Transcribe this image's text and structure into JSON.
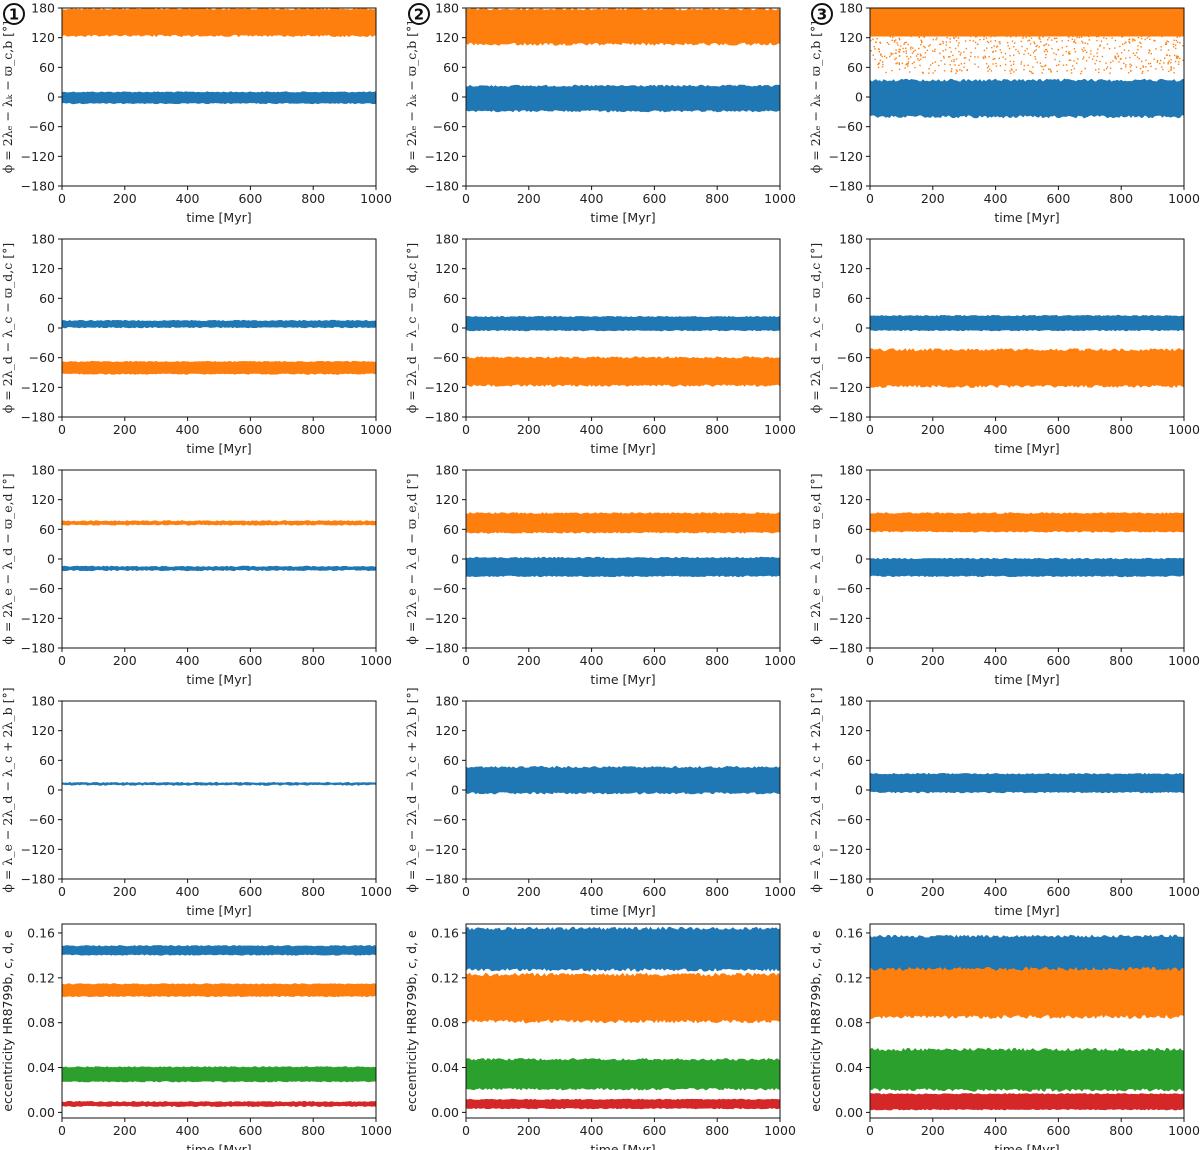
{
  "figure": {
    "column_labels": [
      "1",
      "2",
      "3"
    ],
    "xlabel": "time [Myr]"
  },
  "colors": {
    "blue": "#1f77b4",
    "orange": "#ff7f0e",
    "green": "#2ca02c",
    "red": "#d62728"
  },
  "row_ylabels": [
    "ϕ = 2λₑ − λₖ − ϖ_c,b [°]",
    "ϕ = 2λ_d − λ_c − ϖ_d,c [°]",
    "ϕ = 2λ_e − λ_d − ϖ_e,d [°]",
    "ϕ = λ_e − 2λ_d − λ_c + 2λ_b [°]",
    "eccentricity HR8799b, c, d, e"
  ],
  "chart_data": [
    {
      "row": 0,
      "col": 0,
      "type": "area",
      "xlim": [
        0,
        1000
      ],
      "ylim": [
        -180,
        180
      ],
      "xticks": [
        "0",
        "200",
        "400",
        "600",
        "800",
        "1000"
      ],
      "yticks": [
        "−180",
        "−120",
        "−60",
        "0",
        "60",
        "120",
        "180"
      ],
      "series": [
        {
          "name": "blue",
          "color": "blue",
          "low": -14,
          "high": 11,
          "scatter": 0
        },
        {
          "name": "orange",
          "color": "orange",
          "low": 122,
          "high": 180,
          "scatter": 0
        }
      ]
    },
    {
      "row": 0,
      "col": 1,
      "type": "area",
      "xlim": [
        0,
        1000
      ],
      "ylim": [
        -180,
        180
      ],
      "xticks": [
        "0",
        "200",
        "400",
        "600",
        "800",
        "1000"
      ],
      "yticks": [
        "−180",
        "−120",
        "−60",
        "0",
        "60",
        "120",
        "180"
      ],
      "series": [
        {
          "name": "blue",
          "color": "blue",
          "low": -30,
          "high": 24,
          "scatter": 0
        },
        {
          "name": "orange",
          "color": "orange",
          "low": 105,
          "high": 180,
          "scatter": 0
        }
      ]
    },
    {
      "row": 0,
      "col": 2,
      "type": "area",
      "xlim": [
        0,
        1000
      ],
      "ylim": [
        -180,
        180
      ],
      "xticks": [
        "0",
        "200",
        "400",
        "600",
        "800",
        "1000"
      ],
      "yticks": [
        "−180",
        "−120",
        "−60",
        "0",
        "60",
        "120",
        "180"
      ],
      "series": [
        {
          "name": "orange",
          "color": "orange",
          "low": 75,
          "high": 180,
          "scatter": 1
        },
        {
          "name": "blue",
          "color": "blue",
          "low": -42,
          "high": 36,
          "scatter": 0
        }
      ]
    },
    {
      "row": 1,
      "col": 0,
      "type": "area",
      "xlim": [
        0,
        1000
      ],
      "ylim": [
        -180,
        180
      ],
      "xticks": [
        "0",
        "200",
        "400",
        "600",
        "800",
        "1000"
      ],
      "yticks": [
        "−180",
        "−120",
        "−60",
        "0",
        "60",
        "120",
        "180"
      ],
      "series": [
        {
          "name": "blue",
          "color": "blue",
          "low": 0,
          "high": 16,
          "scatter": 0
        },
        {
          "name": "orange",
          "color": "orange",
          "low": -94,
          "high": -67,
          "scatter": 0
        }
      ]
    },
    {
      "row": 1,
      "col": 1,
      "type": "area",
      "xlim": [
        0,
        1000
      ],
      "ylim": [
        -180,
        180
      ],
      "xticks": [
        "0",
        "200",
        "400",
        "600",
        "800",
        "1000"
      ],
      "yticks": [
        "−180",
        "−120",
        "−60",
        "0",
        "60",
        "120",
        "180"
      ],
      "series": [
        {
          "name": "blue",
          "color": "blue",
          "low": -6,
          "high": 24,
          "scatter": 0
        },
        {
          "name": "orange",
          "color": "orange",
          "low": -118,
          "high": -58,
          "scatter": 0
        }
      ]
    },
    {
      "row": 1,
      "col": 2,
      "type": "area",
      "xlim": [
        0,
        1000
      ],
      "ylim": [
        -180,
        180
      ],
      "xticks": [
        "0",
        "200",
        "400",
        "600",
        "800",
        "1000"
      ],
      "yticks": [
        "−180",
        "−120",
        "−60",
        "0",
        "60",
        "120",
        "180"
      ],
      "series": [
        {
          "name": "blue",
          "color": "blue",
          "low": -6,
          "high": 26,
          "scatter": 0
        },
        {
          "name": "orange",
          "color": "orange",
          "low": -120,
          "high": -42,
          "scatter": 0
        }
      ]
    },
    {
      "row": 2,
      "col": 0,
      "type": "area",
      "xlim": [
        0,
        1000
      ],
      "ylim": [
        -180,
        180
      ],
      "xticks": [
        "0",
        "200",
        "400",
        "600",
        "800",
        "1000"
      ],
      "yticks": [
        "−180",
        "−120",
        "−60",
        "0",
        "60",
        "120",
        "180"
      ],
      "series": [
        {
          "name": "orange",
          "color": "orange",
          "low": 68,
          "high": 78,
          "scatter": 0
        },
        {
          "name": "blue",
          "color": "blue",
          "low": -24,
          "high": -14,
          "scatter": 0
        }
      ]
    },
    {
      "row": 2,
      "col": 1,
      "type": "area",
      "xlim": [
        0,
        1000
      ],
      "ylim": [
        -180,
        180
      ],
      "xticks": [
        "0",
        "200",
        "400",
        "600",
        "800",
        "1000"
      ],
      "yticks": [
        "−180",
        "−120",
        "−60",
        "0",
        "60",
        "120",
        "180"
      ],
      "series": [
        {
          "name": "orange",
          "color": "orange",
          "low": 52,
          "high": 94,
          "scatter": 0
        },
        {
          "name": "blue",
          "color": "blue",
          "low": -36,
          "high": 4,
          "scatter": 0
        }
      ]
    },
    {
      "row": 2,
      "col": 2,
      "type": "area",
      "xlim": [
        0,
        1000
      ],
      "ylim": [
        -180,
        180
      ],
      "xticks": [
        "0",
        "200",
        "400",
        "600",
        "800",
        "1000"
      ],
      "yticks": [
        "−180",
        "−120",
        "−60",
        "0",
        "60",
        "120",
        "180"
      ],
      "series": [
        {
          "name": "orange",
          "color": "orange",
          "low": 54,
          "high": 94,
          "scatter": 0
        },
        {
          "name": "blue",
          "color": "blue",
          "low": -36,
          "high": 2,
          "scatter": 0
        }
      ]
    },
    {
      "row": 3,
      "col": 0,
      "type": "area",
      "xlim": [
        0,
        1000
      ],
      "ylim": [
        -180,
        180
      ],
      "xticks": [
        "0",
        "200",
        "400",
        "600",
        "800",
        "1000"
      ],
      "yticks": [
        "−180",
        "−120",
        "−60",
        "0",
        "60",
        "120",
        "180"
      ],
      "series": [
        {
          "name": "blue",
          "color": "blue",
          "low": 9,
          "high": 16,
          "scatter": 0
        }
      ]
    },
    {
      "row": 3,
      "col": 1,
      "type": "area",
      "xlim": [
        0,
        1000
      ],
      "ylim": [
        -180,
        180
      ],
      "xticks": [
        "0",
        "200",
        "400",
        "600",
        "800",
        "1000"
      ],
      "yticks": [
        "−180",
        "−120",
        "−60",
        "0",
        "60",
        "120",
        "180"
      ],
      "series": [
        {
          "name": "blue",
          "color": "blue",
          "low": -8,
          "high": 48,
          "scatter": 0
        }
      ]
    },
    {
      "row": 3,
      "col": 2,
      "type": "area",
      "xlim": [
        0,
        1000
      ],
      "ylim": [
        -180,
        180
      ],
      "xticks": [
        "0",
        "200",
        "400",
        "600",
        "800",
        "1000"
      ],
      "yticks": [
        "−180",
        "−120",
        "−60",
        "0",
        "60",
        "120",
        "180"
      ],
      "series": [
        {
          "name": "blue",
          "color": "blue",
          "low": -6,
          "high": 34,
          "scatter": 0
        }
      ]
    },
    {
      "row": 4,
      "col": 0,
      "type": "area",
      "xlim": [
        0,
        1000
      ],
      "ylim": [
        -0.005,
        0.168
      ],
      "xticks": [
        "0",
        "200",
        "400",
        "600",
        "800",
        "1000"
      ],
      "yticks": [
        "0.00",
        "0.04",
        "0.08",
        "0.12",
        "0.16"
      ],
      "series": [
        {
          "name": "b",
          "color": "blue",
          "low": 0.14,
          "high": 0.149,
          "scatter": 0
        },
        {
          "name": "c",
          "color": "orange",
          "low": 0.103,
          "high": 0.115,
          "scatter": 0
        },
        {
          "name": "d",
          "color": "green",
          "low": 0.027,
          "high": 0.041,
          "scatter": 0
        },
        {
          "name": "e",
          "color": "red",
          "low": 0.005,
          "high": 0.01,
          "scatter": 0
        }
      ]
    },
    {
      "row": 4,
      "col": 1,
      "type": "area",
      "xlim": [
        0,
        1000
      ],
      "ylim": [
        -0.005,
        0.168
      ],
      "xticks": [
        "0",
        "200",
        "400",
        "600",
        "800",
        "1000"
      ],
      "yticks": [
        "0.00",
        "0.04",
        "0.08",
        "0.12",
        "0.16"
      ],
      "series": [
        {
          "name": "b",
          "color": "blue",
          "low": 0.126,
          "high": 0.165,
          "scatter": 0
        },
        {
          "name": "c",
          "color": "orange",
          "low": 0.08,
          "high": 0.124,
          "scatter": 0
        },
        {
          "name": "d",
          "color": "green",
          "low": 0.02,
          "high": 0.048,
          "scatter": 0
        },
        {
          "name": "e",
          "color": "red",
          "low": 0.003,
          "high": 0.012,
          "scatter": 0
        }
      ]
    },
    {
      "row": 4,
      "col": 2,
      "type": "area",
      "xlim": [
        0,
        1000
      ],
      "ylim": [
        -0.005,
        0.168
      ],
      "xticks": [
        "0",
        "200",
        "400",
        "600",
        "800",
        "1000"
      ],
      "yticks": [
        "0.00",
        "0.04",
        "0.08",
        "0.12",
        "0.16"
      ],
      "series": [
        {
          "name": "b",
          "color": "blue",
          "low": 0.125,
          "high": 0.158,
          "scatter": 0
        },
        {
          "name": "c",
          "color": "orange",
          "low": 0.084,
          "high": 0.129,
          "scatter": 0
        },
        {
          "name": "d",
          "color": "green",
          "low": 0.019,
          "high": 0.057,
          "scatter": 0
        },
        {
          "name": "e",
          "color": "red",
          "low": 0.002,
          "high": 0.017,
          "scatter": 0
        }
      ]
    }
  ]
}
